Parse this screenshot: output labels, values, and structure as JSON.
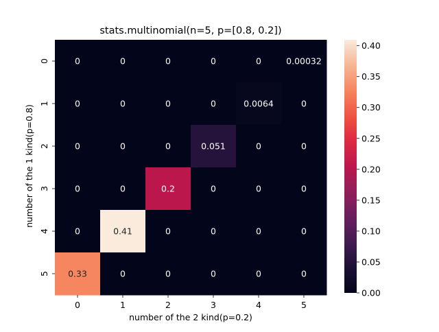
{
  "chart_data": {
    "type": "heatmap",
    "title": "stats.multinomial(n=5, p=[0.8, 0.2])",
    "xlabel": "number of the 2 kind(p=0.2)",
    "ylabel": "number of the 1 kind(p=0.8)",
    "x_categories": [
      "0",
      "1",
      "2",
      "3",
      "4",
      "5"
    ],
    "y_categories": [
      "0",
      "1",
      "2",
      "3",
      "4",
      "5"
    ],
    "values": [
      [
        0,
        0,
        0,
        0,
        0,
        0.00032
      ],
      [
        0,
        0,
        0,
        0,
        0.0064,
        0
      ],
      [
        0,
        0,
        0,
        0.0512,
        0,
        0
      ],
      [
        0,
        0,
        0.2048,
        0,
        0,
        0
      ],
      [
        0,
        0.4096,
        0,
        0,
        0,
        0
      ],
      [
        0.32768,
        0,
        0,
        0,
        0,
        0
      ]
    ],
    "annotations": [
      [
        "0",
        "0",
        "0",
        "0",
        "0",
        "0.00032"
      ],
      [
        "0",
        "0",
        "0",
        "0",
        "0.0064",
        "0"
      ],
      [
        "0",
        "0",
        "0",
        "0.051",
        "0",
        "0"
      ],
      [
        "0",
        "0",
        "0.2",
        "0",
        "0",
        "0"
      ],
      [
        "0",
        "0.41",
        "0",
        "0",
        "0",
        "0"
      ],
      [
        "0.33",
        "0",
        "0",
        "0",
        "0",
        "0"
      ]
    ],
    "colorbar": {
      "vmin": 0,
      "vmax": 0.4096,
      "ticks": [
        "0.00",
        "0.05",
        "0.10",
        "0.15",
        "0.20",
        "0.25",
        "0.30",
        "0.35",
        "0.40"
      ],
      "tick_values": [
        0,
        0.05,
        0.1,
        0.15,
        0.2,
        0.25,
        0.3,
        0.35,
        0.4
      ],
      "colormap": "rocket"
    }
  }
}
